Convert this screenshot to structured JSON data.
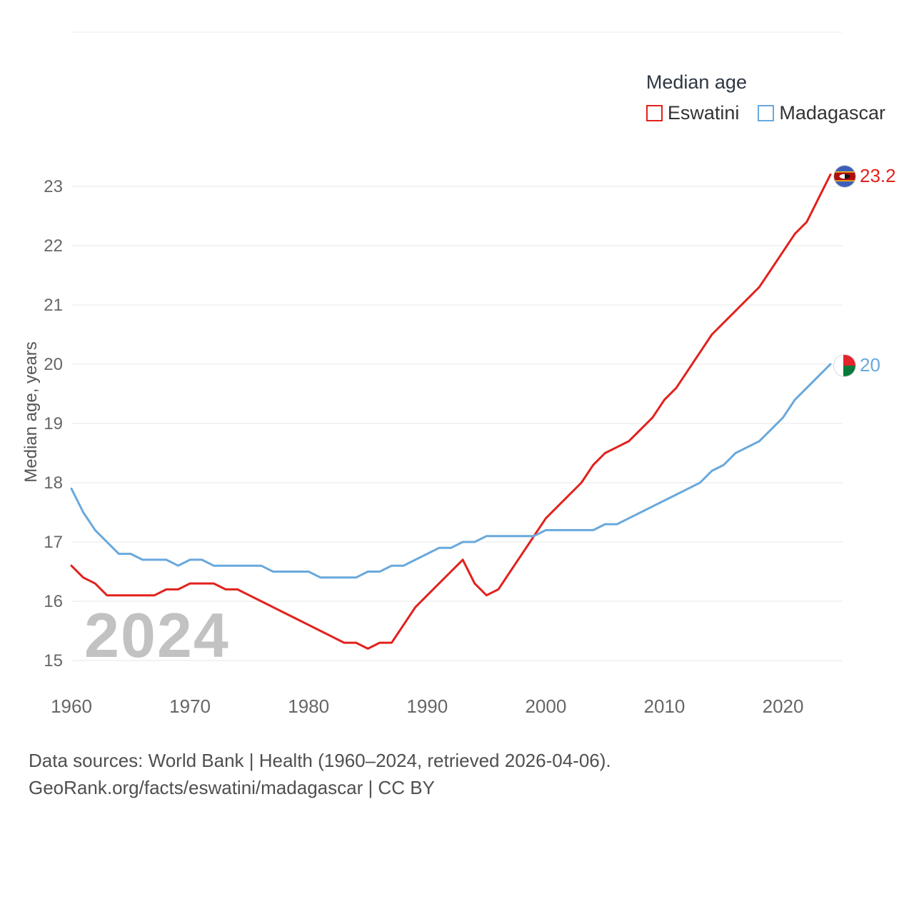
{
  "legend": {
    "title": "Median age",
    "items": [
      {
        "label": "Eswatini",
        "color": "#e2211c"
      },
      {
        "label": "Madagascar",
        "color": "#69a8dc"
      }
    ]
  },
  "watermark": "2024",
  "end_labels": {
    "eswatini": {
      "value": "23.2"
    },
    "madagascar": {
      "value": "20"
    }
  },
  "footer": {
    "line1": "Data sources: World Bank | Health (1960–2024, retrieved 2026-04-06).",
    "line2": "GeoRank.org/facts/eswatini/madagascar | CC BY"
  },
  "icons": {
    "eswatini_flag": "eswatini-flag-icon",
    "madagascar_flag": "madagascar-flag-icon"
  },
  "chart_data": {
    "type": "line",
    "title": "Median age",
    "ylabel": "Median age, years",
    "xlabel": "",
    "grid": true,
    "legend_position": "top-right",
    "xlim": [
      1960,
      2024
    ],
    "ylim": [
      15,
      23
    ],
    "xticks": [
      1960,
      1970,
      1980,
      1990,
      2000,
      2010,
      2020
    ],
    "yticks": [
      15,
      16,
      17,
      18,
      19,
      20,
      21,
      22,
      23
    ],
    "x": [
      1960,
      1961,
      1962,
      1963,
      1964,
      1965,
      1966,
      1967,
      1968,
      1969,
      1970,
      1971,
      1972,
      1973,
      1974,
      1975,
      1976,
      1977,
      1978,
      1979,
      1980,
      1981,
      1982,
      1983,
      1984,
      1985,
      1986,
      1987,
      1988,
      1989,
      1990,
      1991,
      1992,
      1993,
      1994,
      1995,
      1996,
      1997,
      1998,
      1999,
      2000,
      2001,
      2002,
      2003,
      2004,
      2005,
      2006,
      2007,
      2008,
      2009,
      2010,
      2011,
      2012,
      2013,
      2014,
      2015,
      2016,
      2017,
      2018,
      2019,
      2020,
      2021,
      2022,
      2023,
      2024
    ],
    "series": [
      {
        "name": "Eswatini",
        "color": "#e2211c",
        "end_value": 23.2,
        "values": [
          16.6,
          16.4,
          16.3,
          16.1,
          16.1,
          16.1,
          16.1,
          16.1,
          16.2,
          16.2,
          16.3,
          16.3,
          16.3,
          16.2,
          16.2,
          16.1,
          16.0,
          15.9,
          15.8,
          15.7,
          15.6,
          15.5,
          15.4,
          15.3,
          15.3,
          15.2,
          15.3,
          15.3,
          15.6,
          15.9,
          16.1,
          16.3,
          16.5,
          16.7,
          16.3,
          16.1,
          16.2,
          16.5,
          16.8,
          17.1,
          17.4,
          17.6,
          17.8,
          18.0,
          18.3,
          18.5,
          18.6,
          18.7,
          18.9,
          19.1,
          19.4,
          19.6,
          19.9,
          20.2,
          20.5,
          20.7,
          20.9,
          21.1,
          21.3,
          21.6,
          21.9,
          22.2,
          22.4,
          22.8,
          23.2
        ]
      },
      {
        "name": "Madagascar",
        "color": "#69a8dc",
        "end_value": 20,
        "values": [
          17.9,
          17.5,
          17.2,
          17.0,
          16.8,
          16.8,
          16.7,
          16.7,
          16.7,
          16.6,
          16.7,
          16.7,
          16.6,
          16.6,
          16.6,
          16.6,
          16.6,
          16.5,
          16.5,
          16.5,
          16.5,
          16.4,
          16.4,
          16.4,
          16.4,
          16.5,
          16.5,
          16.6,
          16.6,
          16.7,
          16.8,
          16.9,
          16.9,
          17.0,
          17.0,
          17.1,
          17.1,
          17.1,
          17.1,
          17.1,
          17.2,
          17.2,
          17.2,
          17.2,
          17.2,
          17.3,
          17.3,
          17.4,
          17.5,
          17.6,
          17.7,
          17.8,
          17.9,
          18.0,
          18.2,
          18.3,
          18.5,
          18.6,
          18.7,
          18.9,
          19.1,
          19.4,
          19.6,
          19.8,
          20.0
        ]
      }
    ]
  }
}
